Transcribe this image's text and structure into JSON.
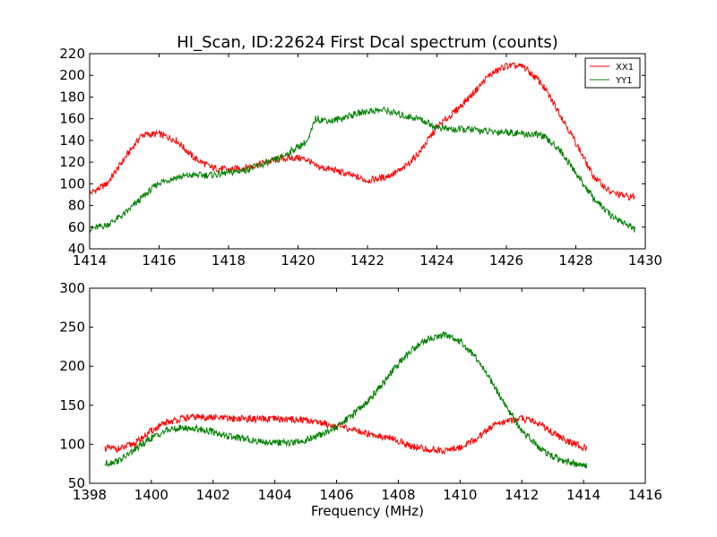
{
  "figure": {
    "title": "HI_Scan, ID:22624 First Dcal spectrum (counts)"
  },
  "chart_data": [
    {
      "type": "line",
      "title": "HI_Scan, ID:22624 First Dcal spectrum (counts)",
      "xlabel": "",
      "ylabel": "",
      "xlim": [
        1414,
        1430
      ],
      "ylim": [
        40,
        220
      ],
      "xticks": [
        1414,
        1416,
        1418,
        1420,
        1422,
        1424,
        1426,
        1428,
        1430
      ],
      "yticks": [
        40,
        60,
        80,
        100,
        120,
        140,
        160,
        180,
        200,
        220
      ],
      "grid": false,
      "legend": "top-right",
      "series": [
        {
          "name": "XX1",
          "color": "#ff0000",
          "x": [
            1414.0,
            1414.5,
            1415.0,
            1415.5,
            1416.0,
            1416.5,
            1417.0,
            1417.5,
            1418.0,
            1418.5,
            1419.0,
            1419.5,
            1420.0,
            1420.3,
            1420.5,
            1421.0,
            1421.5,
            1422.0,
            1422.5,
            1423.0,
            1423.5,
            1424.0,
            1424.5,
            1425.0,
            1425.5,
            1426.0,
            1426.5,
            1427.0,
            1427.5,
            1428.0,
            1428.5,
            1429.0,
            1429.5,
            1429.7
          ],
          "y": [
            91,
            100,
            123,
            145,
            146,
            140,
            124,
            115,
            113,
            115,
            119,
            123,
            124,
            122,
            116,
            113,
            108,
            103,
            106,
            113,
            129,
            152,
            166,
            182,
            200,
            209,
            208,
            193,
            167,
            138,
            107,
            92,
            88,
            88
          ]
        },
        {
          "name": "YY1",
          "color": "#008000",
          "x": [
            1414.0,
            1414.5,
            1415.0,
            1415.5,
            1416.0,
            1416.5,
            1417.0,
            1417.5,
            1418.0,
            1418.5,
            1419.0,
            1419.5,
            1420.0,
            1420.3,
            1420.5,
            1421.0,
            1421.5,
            1422.0,
            1422.5,
            1423.0,
            1423.5,
            1424.0,
            1424.5,
            1425.0,
            1425.5,
            1426.0,
            1426.5,
            1427.0,
            1427.5,
            1428.0,
            1428.5,
            1429.0,
            1429.5,
            1429.7
          ],
          "y": [
            58,
            62,
            72,
            87,
            101,
            106,
            108,
            108,
            110,
            113,
            118,
            124,
            134,
            140,
            160,
            158,
            163,
            167,
            168,
            163,
            160,
            152,
            150,
            150,
            148,
            148,
            146,
            145,
            133,
            110,
            87,
            71,
            62,
            58
          ]
        }
      ]
    },
    {
      "type": "line",
      "title": "",
      "xlabel": "Frequency (MHz)",
      "ylabel": "",
      "xlim": [
        1398,
        1416
      ],
      "ylim": [
        50,
        300
      ],
      "xticks": [
        1398,
        1400,
        1402,
        1404,
        1406,
        1408,
        1410,
        1412,
        1414,
        1416
      ],
      "yticks": [
        50,
        100,
        150,
        200,
        250,
        300
      ],
      "grid": false,
      "series": [
        {
          "name": "XX1",
          "color": "#ff0000",
          "x": [
            1398.5,
            1399.0,
            1399.5,
            1400.0,
            1400.5,
            1401.0,
            1401.5,
            1402.0,
            1402.5,
            1403.0,
            1403.5,
            1404.0,
            1404.5,
            1405.0,
            1405.5,
            1406.0,
            1406.5,
            1407.0,
            1407.5,
            1408.0,
            1408.5,
            1409.0,
            1409.5,
            1410.0,
            1410.5,
            1411.0,
            1411.5,
            1412.0,
            1412.5,
            1413.0,
            1413.5,
            1414.1
          ],
          "y": [
            95,
            94,
            102,
            117,
            128,
            133,
            135,
            134,
            133,
            133,
            132,
            132,
            132,
            131,
            128,
            123,
            119,
            114,
            110,
            104,
            97,
            93,
            92,
            96,
            106,
            122,
            130,
            133,
            128,
            115,
            103,
            95
          ]
        },
        {
          "name": "YY1",
          "color": "#008000",
          "x": [
            1398.5,
            1399.0,
            1399.5,
            1400.0,
            1400.5,
            1401.0,
            1401.5,
            1402.0,
            1402.5,
            1403.0,
            1403.5,
            1404.0,
            1404.5,
            1405.0,
            1405.5,
            1406.0,
            1406.5,
            1407.0,
            1407.5,
            1408.0,
            1408.5,
            1409.0,
            1409.5,
            1410.0,
            1410.5,
            1411.0,
            1411.5,
            1412.0,
            1412.5,
            1413.0,
            1413.5,
            1414.1
          ],
          "y": [
            75,
            80,
            94,
            108,
            118,
            121,
            120,
            116,
            110,
            107,
            104,
            102,
            102,
            105,
            112,
            122,
            137,
            155,
            178,
            203,
            223,
            236,
            240,
            232,
            212,
            181,
            148,
            118,
            98,
            84,
            77,
            72
          ]
        }
      ]
    }
  ]
}
